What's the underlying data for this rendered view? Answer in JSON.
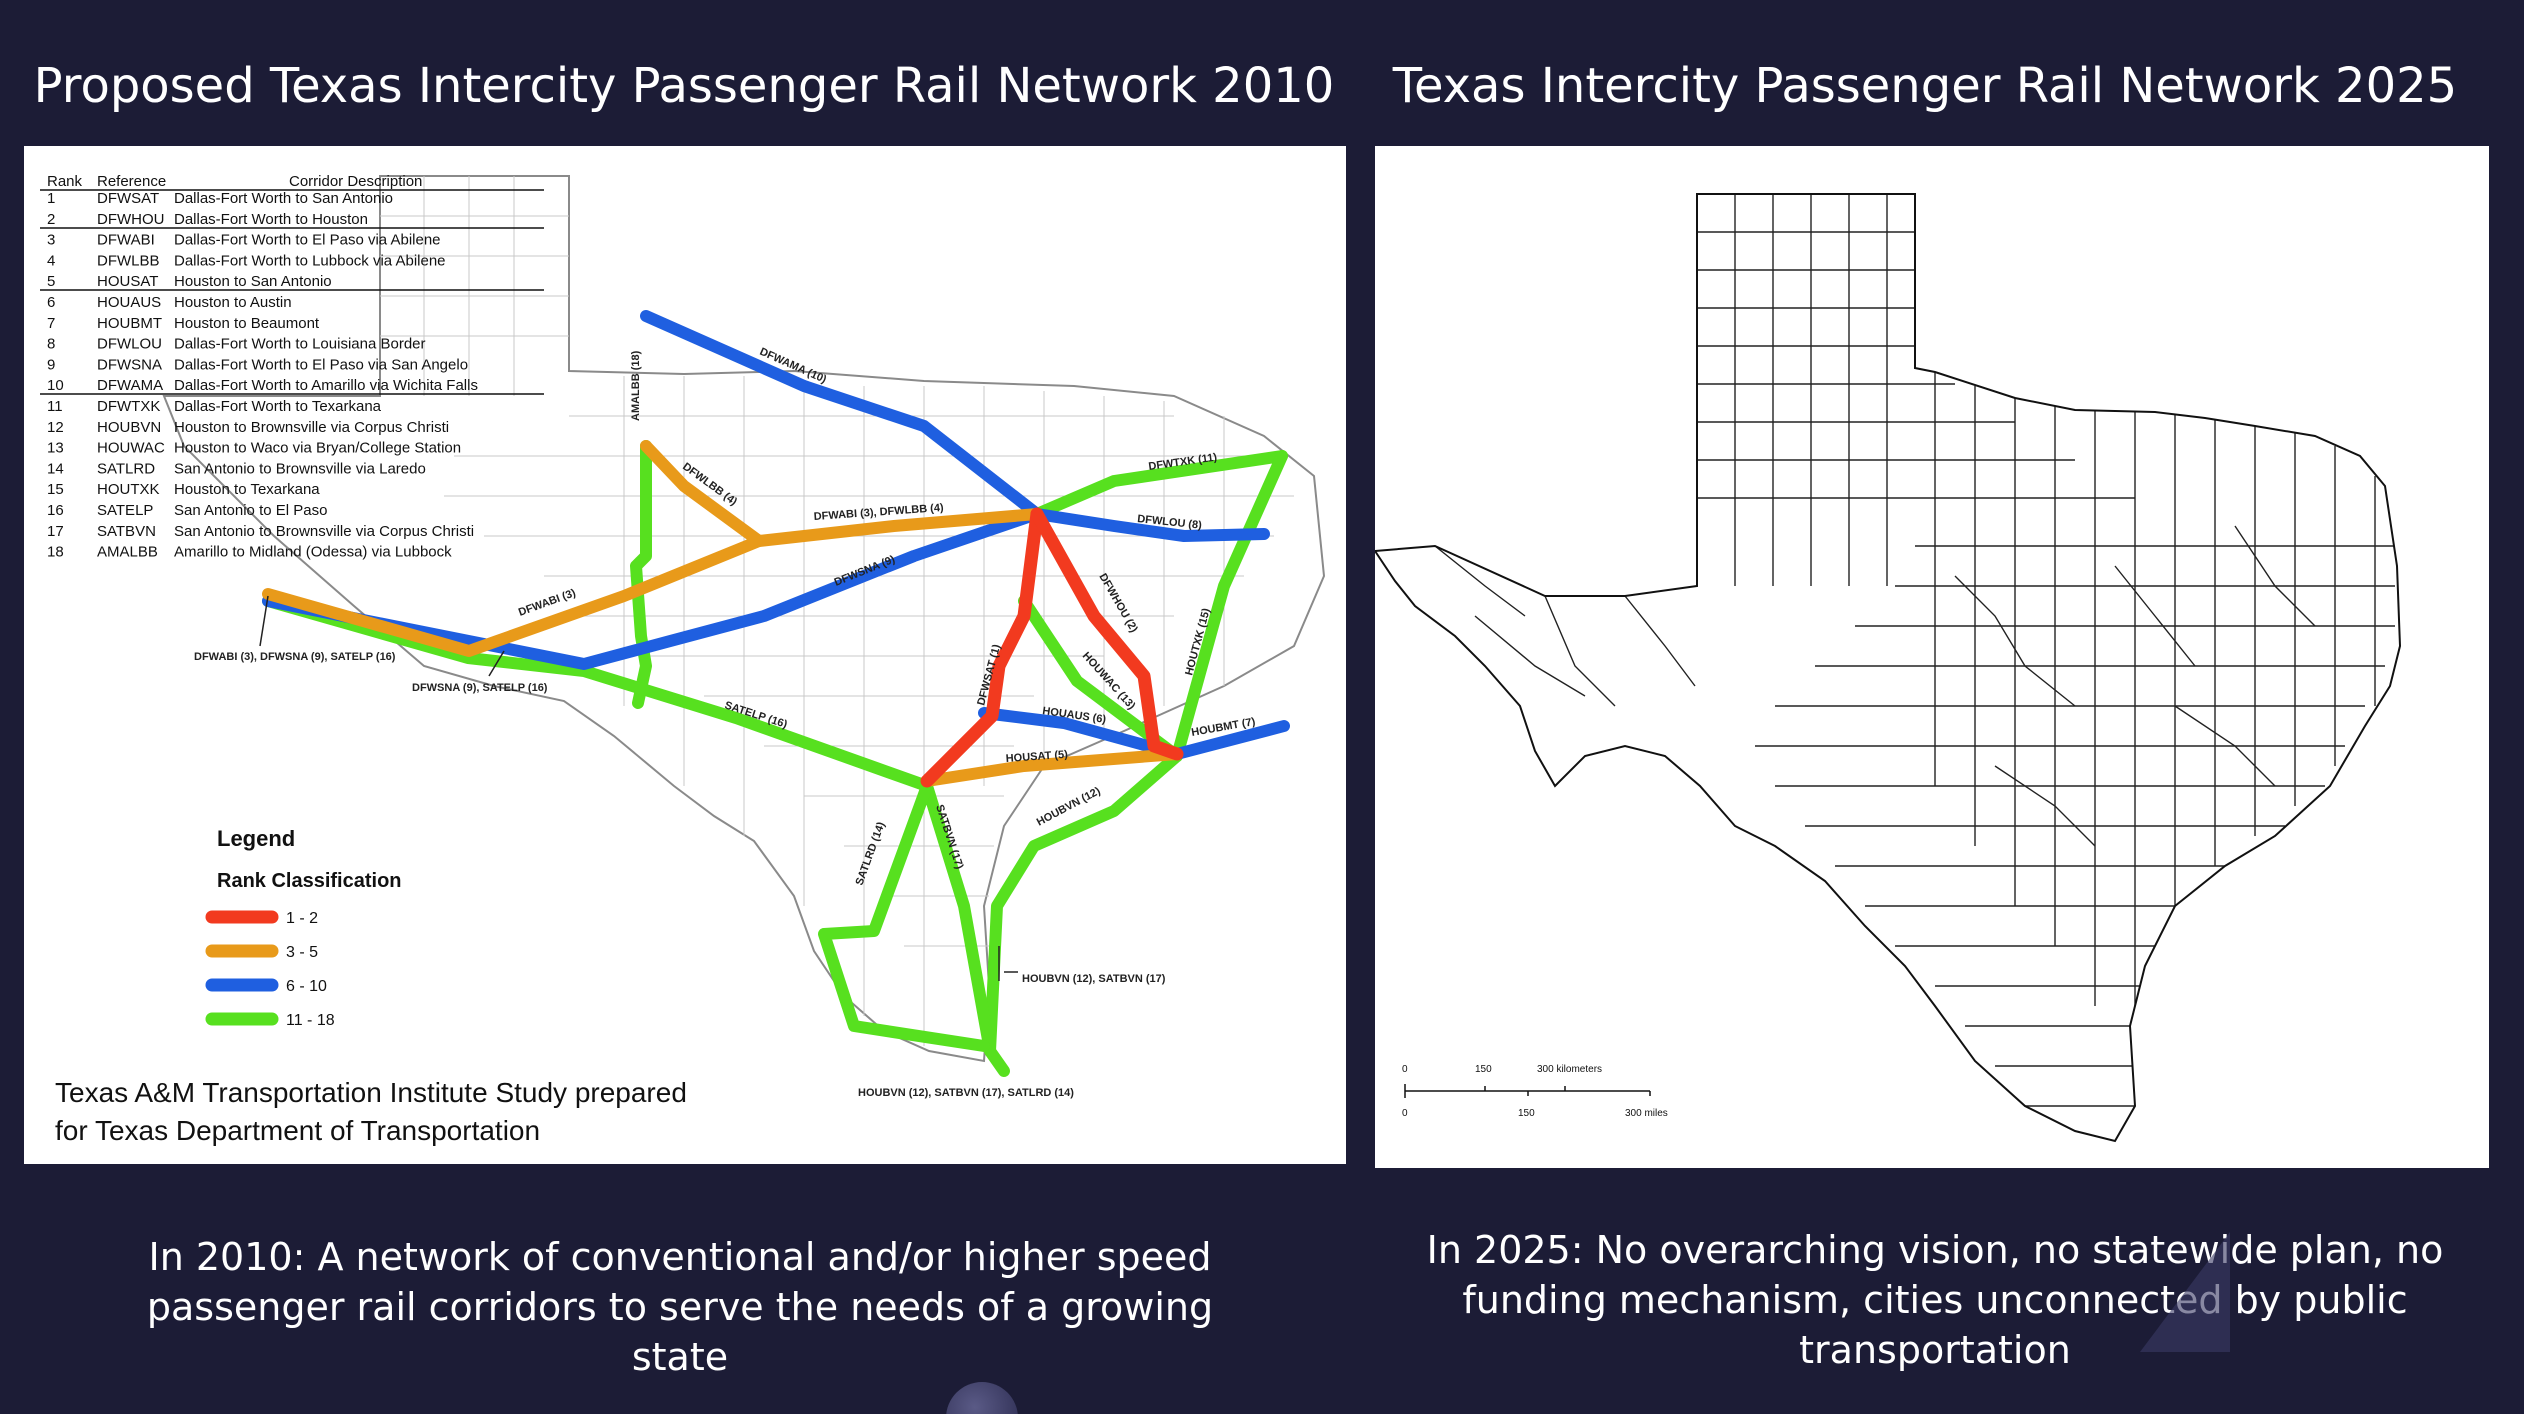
{
  "left": {
    "title": "Proposed Texas Intercity Passenger Rail Network 2010",
    "caption": "In 2010: A network of conventional and/or higher speed passenger rail corridors to serve the needs of a growing state",
    "credit_line1": "Texas A&M Transportation Institute Study prepared",
    "credit_line2": "for Texas Department of Transportation",
    "table": {
      "headers": [
        "Rank",
        "Reference",
        "Corridor Description"
      ],
      "rows": [
        [
          "1",
          "DFWSAT",
          "Dallas-Fort Worth to San Antonio"
        ],
        [
          "2",
          "DFWHOU",
          "Dallas-Fort Worth to Houston"
        ],
        [
          "3",
          "DFWABI",
          "Dallas-Fort Worth to El Paso via Abilene"
        ],
        [
          "4",
          "DFWLBB",
          "Dallas-Fort Worth to Lubbock via Abilene"
        ],
        [
          "5",
          "HOUSAT",
          "Houston to San Antonio"
        ],
        [
          "6",
          "HOUAUS",
          "Houston to Austin"
        ],
        [
          "7",
          "HOUBMT",
          "Houston to Beaumont"
        ],
        [
          "8",
          "DFWLOU",
          "Dallas-Fort Worth to Louisiana Border"
        ],
        [
          "9",
          "DFWSNA",
          "Dallas-Fort Worth to El Paso via San Angelo"
        ],
        [
          "10",
          "DFWAMA",
          "Dallas-Fort Worth to Amarillo via Wichita Falls"
        ],
        [
          "11",
          "DFWTXK",
          "Dallas-Fort Worth to Texarkana"
        ],
        [
          "12",
          "HOUBVN",
          "Houston to Brownsville via Corpus Christi"
        ],
        [
          "13",
          "HOUWAC",
          "Houston to Waco via Bryan/College Station"
        ],
        [
          "14",
          "SATLRD",
          "San Antonio to Brownsville via Laredo"
        ],
        [
          "15",
          "HOUTXK",
          "Houston to Texarkana"
        ],
        [
          "16",
          "SATELP",
          "San Antonio to El Paso"
        ],
        [
          "17",
          "SATBVN",
          "San Antonio to Brownsville via Corpus Christi"
        ],
        [
          "18",
          "AMALBB",
          "Amarillo to Midland (Odessa) via Lubbock"
        ]
      ]
    },
    "legend": {
      "title": "Legend",
      "subtitle": "Rank Classification",
      "items": [
        {
          "label": "1 - 2",
          "color": "#f23a1f"
        },
        {
          "label": "3 - 5",
          "color": "#e89a1a"
        },
        {
          "label": "6 - 10",
          "color": "#1f5fe0"
        },
        {
          "label": "11 - 18",
          "color": "#57e01f"
        }
      ]
    },
    "route_labels": {
      "dfwama": "DFWAMA (10)",
      "amalbb": "AMALBB (18)",
      "dfwlbb": "DFWLBB (4)",
      "dfwabi_lbb": "DFWABI (3), DFWLBB (4)",
      "dfwtxk": "DFWTXK (11)",
      "dfwlou": "DFWLOU (8)",
      "dfwsna": "DFWSNA (9)",
      "dfwabi": "DFWABI (3)",
      "dfwhou": "DFWHOU (2)",
      "houtxk": "HOUTXK (15)",
      "dfwsat": "DFWSAT (1)",
      "houwac": "HOUWAC (13)",
      "houaus": "HOUAUS (6)",
      "houbmt": "HOUBMT (7)",
      "housat": "HOUSAT (5)",
      "satelp": "SATELP (16)",
      "houbvn": "HOUBVN (12)",
      "satlrd": "SATLRD (14)",
      "satbvn": "SATBVN (17)",
      "elpaso_west": "DFWABI (3), DFWSNA (9), SATELP (16)",
      "elpaso_east": "DFWSNA (9), SATELP (16)",
      "corpus": "HOUBVN (12), SATBVN (17)",
      "brownsville": "HOUBVN (12), SATBVN (17), SATLRD (14)"
    }
  },
  "right": {
    "title": "Texas Intercity Passenger Rail Network 2025",
    "caption": "In 2025: No overarching vision, no statewide plan, no funding mechanism, cities unconnected by public transportation",
    "scale": {
      "km_ticks": [
        "0",
        "150",
        "300 kilometers"
      ],
      "mi_ticks": [
        "0",
        "150",
        "300 miles"
      ]
    }
  }
}
